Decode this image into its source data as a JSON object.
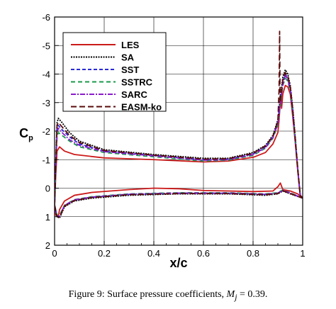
{
  "chart_data": {
    "type": "line",
    "xlabel": "x/c",
    "ylabel": "C",
    "ylabel_sub": "p",
    "xlim": [
      0,
      1
    ],
    "ylim": [
      2,
      -6
    ],
    "y_inverted": true,
    "grid": true,
    "legend_placement": "top-left",
    "xticks": [
      "0",
      "0.2",
      "0.4",
      "0.6",
      "0.8",
      "1"
    ],
    "xtick_values": [
      0,
      0.2,
      0.4,
      0.6,
      0.8,
      1
    ],
    "yticks": [
      "-6",
      "-5",
      "-4",
      "-3",
      "-2",
      "-1",
      "0",
      "1",
      "2"
    ],
    "ytick_values": [
      -6,
      -5,
      -4,
      -3,
      -2,
      -1,
      0,
      1,
      2
    ],
    "series": [
      {
        "name": "LES",
        "color": "#cc1a1a",
        "dash": "solid",
        "upper": [
          [
            0.0,
            0.6
          ],
          [
            0.005,
            -0.5
          ],
          [
            0.01,
            -1.3
          ],
          [
            0.02,
            -1.45
          ],
          [
            0.04,
            -1.3
          ],
          [
            0.08,
            -1.18
          ],
          [
            0.2,
            -1.06
          ],
          [
            0.4,
            -1.0
          ],
          [
            0.6,
            -0.92
          ],
          [
            0.7,
            -0.95
          ],
          [
            0.8,
            -1.08
          ],
          [
            0.85,
            -1.25
          ],
          [
            0.88,
            -1.55
          ],
          [
            0.9,
            -1.95
          ],
          [
            0.905,
            -2.4
          ],
          [
            0.91,
            -3.1
          ],
          [
            0.912,
            -3.2
          ],
          [
            0.915,
            -2.8
          ],
          [
            0.92,
            -3.3
          ],
          [
            0.93,
            -3.6
          ],
          [
            0.94,
            -3.55
          ],
          [
            0.95,
            -3.3
          ],
          [
            0.96,
            -2.5
          ],
          [
            0.97,
            -1.6
          ],
          [
            0.98,
            -0.6
          ],
          [
            0.99,
            0.25
          ],
          [
            1.0,
            0.35
          ]
        ],
        "lower": [
          [
            0.0,
            0.6
          ],
          [
            0.005,
            0.95
          ],
          [
            0.015,
            1.0
          ],
          [
            0.02,
            0.75
          ],
          [
            0.04,
            0.45
          ],
          [
            0.08,
            0.25
          ],
          [
            0.15,
            0.15
          ],
          [
            0.3,
            0.05
          ],
          [
            0.4,
            0.0
          ],
          [
            0.5,
            0.02
          ],
          [
            0.6,
            0.08
          ],
          [
            0.7,
            0.1
          ],
          [
            0.8,
            0.12
          ],
          [
            0.88,
            0.1
          ],
          [
            0.9,
            -0.05
          ],
          [
            0.91,
            -0.18
          ],
          [
            0.92,
            0.05
          ],
          [
            0.95,
            0.1
          ],
          [
            0.98,
            0.2
          ],
          [
            1.0,
            0.35
          ]
        ]
      },
      {
        "name": "SA",
        "color": "#000000",
        "dash": "2,1.5",
        "upper": [
          [
            0.0,
            0.6
          ],
          [
            0.005,
            -1.0
          ],
          [
            0.01,
            -2.3
          ],
          [
            0.015,
            -2.45
          ],
          [
            0.03,
            -2.3
          ],
          [
            0.06,
            -1.95
          ],
          [
            0.1,
            -1.65
          ],
          [
            0.2,
            -1.35
          ],
          [
            0.4,
            -1.18
          ],
          [
            0.6,
            -1.05
          ],
          [
            0.7,
            -1.05
          ],
          [
            0.8,
            -1.25
          ],
          [
            0.85,
            -1.5
          ],
          [
            0.88,
            -1.85
          ],
          [
            0.9,
            -2.4
          ],
          [
            0.91,
            -3.2
          ],
          [
            0.92,
            -3.9
          ],
          [
            0.93,
            -4.15
          ],
          [
            0.94,
            -4.0
          ],
          [
            0.95,
            -3.6
          ],
          [
            0.96,
            -2.8
          ],
          [
            0.97,
            -1.8
          ],
          [
            0.98,
            -0.7
          ],
          [
            0.99,
            0.25
          ],
          [
            1.0,
            0.35
          ]
        ],
        "lower": [
          [
            0.0,
            0.6
          ],
          [
            0.01,
            1.0
          ],
          [
            0.02,
            1.05
          ],
          [
            0.04,
            0.65
          ],
          [
            0.08,
            0.45
          ],
          [
            0.15,
            0.35
          ],
          [
            0.3,
            0.25
          ],
          [
            0.5,
            0.2
          ],
          [
            0.7,
            0.2
          ],
          [
            0.85,
            0.25
          ],
          [
            0.9,
            0.2
          ],
          [
            0.92,
            0.1
          ],
          [
            0.95,
            0.2
          ],
          [
            1.0,
            0.35
          ]
        ]
      },
      {
        "name": "SST",
        "color": "#2a2ad6",
        "dash": "5,3",
        "upper": [
          [
            0.0,
            0.6
          ],
          [
            0.005,
            -0.9
          ],
          [
            0.01,
            -2.1
          ],
          [
            0.015,
            -2.2
          ],
          [
            0.03,
            -2.05
          ],
          [
            0.06,
            -1.8
          ],
          [
            0.1,
            -1.55
          ],
          [
            0.2,
            -1.3
          ],
          [
            0.4,
            -1.15
          ],
          [
            0.6,
            -1.0
          ],
          [
            0.7,
            -1.02
          ],
          [
            0.8,
            -1.2
          ],
          [
            0.85,
            -1.45
          ],
          [
            0.88,
            -1.8
          ],
          [
            0.9,
            -2.3
          ],
          [
            0.91,
            -3.0
          ],
          [
            0.92,
            -3.7
          ],
          [
            0.93,
            -4.0
          ],
          [
            0.94,
            -3.85
          ],
          [
            0.95,
            -3.5
          ],
          [
            0.96,
            -2.7
          ],
          [
            0.97,
            -1.7
          ],
          [
            0.98,
            -0.7
          ],
          [
            0.99,
            0.25
          ],
          [
            1.0,
            0.35
          ]
        ],
        "lower": [
          [
            0.0,
            0.6
          ],
          [
            0.01,
            1.0
          ],
          [
            0.02,
            1.0
          ],
          [
            0.04,
            0.62
          ],
          [
            0.08,
            0.42
          ],
          [
            0.15,
            0.32
          ],
          [
            0.3,
            0.22
          ],
          [
            0.5,
            0.18
          ],
          [
            0.7,
            0.18
          ],
          [
            0.85,
            0.22
          ],
          [
            0.9,
            0.18
          ],
          [
            0.92,
            0.08
          ],
          [
            0.95,
            0.18
          ],
          [
            1.0,
            0.35
          ]
        ]
      },
      {
        "name": "SSTRC",
        "color": "#1a9a4a",
        "dash": "6,4",
        "upper": [
          [
            0.0,
            0.6
          ],
          [
            0.005,
            -0.8
          ],
          [
            0.01,
            -1.8
          ],
          [
            0.015,
            -1.95
          ],
          [
            0.03,
            -1.85
          ],
          [
            0.06,
            -1.65
          ],
          [
            0.1,
            -1.45
          ],
          [
            0.2,
            -1.25
          ],
          [
            0.4,
            -1.1
          ],
          [
            0.6,
            -0.95
          ],
          [
            0.7,
            -0.98
          ],
          [
            0.8,
            -1.15
          ],
          [
            0.85,
            -1.4
          ],
          [
            0.88,
            -1.75
          ],
          [
            0.9,
            -2.2
          ],
          [
            0.91,
            -2.9
          ],
          [
            0.92,
            -3.6
          ],
          [
            0.93,
            -3.85
          ],
          [
            0.94,
            -3.75
          ],
          [
            0.95,
            -3.4
          ],
          [
            0.96,
            -2.6
          ],
          [
            0.97,
            -1.65
          ],
          [
            0.98,
            -0.65
          ],
          [
            0.99,
            0.25
          ],
          [
            1.0,
            0.35
          ]
        ],
        "lower": [
          [
            0.0,
            0.6
          ],
          [
            0.01,
            0.95
          ],
          [
            0.02,
            0.95
          ],
          [
            0.04,
            0.6
          ],
          [
            0.08,
            0.4
          ],
          [
            0.15,
            0.3
          ],
          [
            0.3,
            0.2
          ],
          [
            0.5,
            0.16
          ],
          [
            0.7,
            0.16
          ],
          [
            0.85,
            0.2
          ],
          [
            0.9,
            0.16
          ],
          [
            0.92,
            0.06
          ],
          [
            0.95,
            0.16
          ],
          [
            1.0,
            0.35
          ]
        ]
      },
      {
        "name": "SARC",
        "color": "#8a1acc",
        "dash": "7,2,2,2",
        "upper": [
          [
            0.0,
            0.6
          ],
          [
            0.005,
            -0.85
          ],
          [
            0.01,
            -2.0
          ],
          [
            0.015,
            -2.1
          ],
          [
            0.03,
            -1.95
          ],
          [
            0.06,
            -1.7
          ],
          [
            0.1,
            -1.5
          ],
          [
            0.2,
            -1.28
          ],
          [
            0.4,
            -1.13
          ],
          [
            0.6,
            -0.98
          ],
          [
            0.7,
            -1.0
          ],
          [
            0.8,
            -1.18
          ],
          [
            0.85,
            -1.42
          ],
          [
            0.88,
            -1.78
          ],
          [
            0.9,
            -2.25
          ],
          [
            0.91,
            -2.95
          ],
          [
            0.92,
            -3.65
          ],
          [
            0.93,
            -3.95
          ],
          [
            0.94,
            -3.8
          ],
          [
            0.95,
            -3.45
          ],
          [
            0.96,
            -2.65
          ],
          [
            0.97,
            -1.68
          ],
          [
            0.98,
            -0.68
          ],
          [
            0.99,
            0.25
          ],
          [
            1.0,
            0.35
          ]
        ],
        "lower": [
          [
            0.0,
            0.6
          ],
          [
            0.01,
            0.98
          ],
          [
            0.02,
            0.98
          ],
          [
            0.04,
            0.6
          ],
          [
            0.08,
            0.41
          ],
          [
            0.15,
            0.31
          ],
          [
            0.3,
            0.21
          ],
          [
            0.5,
            0.17
          ],
          [
            0.7,
            0.17
          ],
          [
            0.85,
            0.21
          ],
          [
            0.9,
            0.17
          ],
          [
            0.92,
            0.07
          ],
          [
            0.95,
            0.17
          ],
          [
            1.0,
            0.35
          ]
        ]
      },
      {
        "name": "EASM-ko",
        "color": "#5a0a0a",
        "dash": "8,4",
        "upper": [
          [
            0.0,
            0.6
          ],
          [
            0.005,
            -0.95
          ],
          [
            0.01,
            -2.2
          ],
          [
            0.015,
            -2.3
          ],
          [
            0.03,
            -2.15
          ],
          [
            0.06,
            -1.85
          ],
          [
            0.1,
            -1.6
          ],
          [
            0.2,
            -1.32
          ],
          [
            0.4,
            -1.16
          ],
          [
            0.6,
            -1.02
          ],
          [
            0.7,
            -1.03
          ],
          [
            0.8,
            -1.22
          ],
          [
            0.85,
            -1.48
          ],
          [
            0.88,
            -1.82
          ],
          [
            0.9,
            -2.35
          ],
          [
            0.905,
            -3.5
          ],
          [
            0.907,
            -5.5
          ],
          [
            0.909,
            -3.0
          ],
          [
            0.92,
            -3.8
          ],
          [
            0.93,
            -4.05
          ],
          [
            0.94,
            -3.9
          ],
          [
            0.95,
            -3.55
          ],
          [
            0.96,
            -2.75
          ],
          [
            0.97,
            -1.75
          ],
          [
            0.98,
            -0.7
          ],
          [
            0.99,
            0.25
          ],
          [
            1.0,
            0.35
          ]
        ],
        "lower": [
          [
            0.0,
            0.6
          ],
          [
            0.01,
            1.0
          ],
          [
            0.02,
            1.02
          ],
          [
            0.04,
            0.63
          ],
          [
            0.08,
            0.43
          ],
          [
            0.15,
            0.33
          ],
          [
            0.3,
            0.23
          ],
          [
            0.5,
            0.19
          ],
          [
            0.7,
            0.19
          ],
          [
            0.85,
            0.23
          ],
          [
            0.9,
            0.19
          ],
          [
            0.92,
            0.09
          ],
          [
            0.95,
            0.19
          ],
          [
            1.0,
            0.35
          ]
        ]
      }
    ]
  },
  "caption": {
    "prefix": "Figure 9: Surface pressure coefficients, ",
    "math_var": "M",
    "math_sub": "j",
    "math_rest": " = 0.39."
  }
}
